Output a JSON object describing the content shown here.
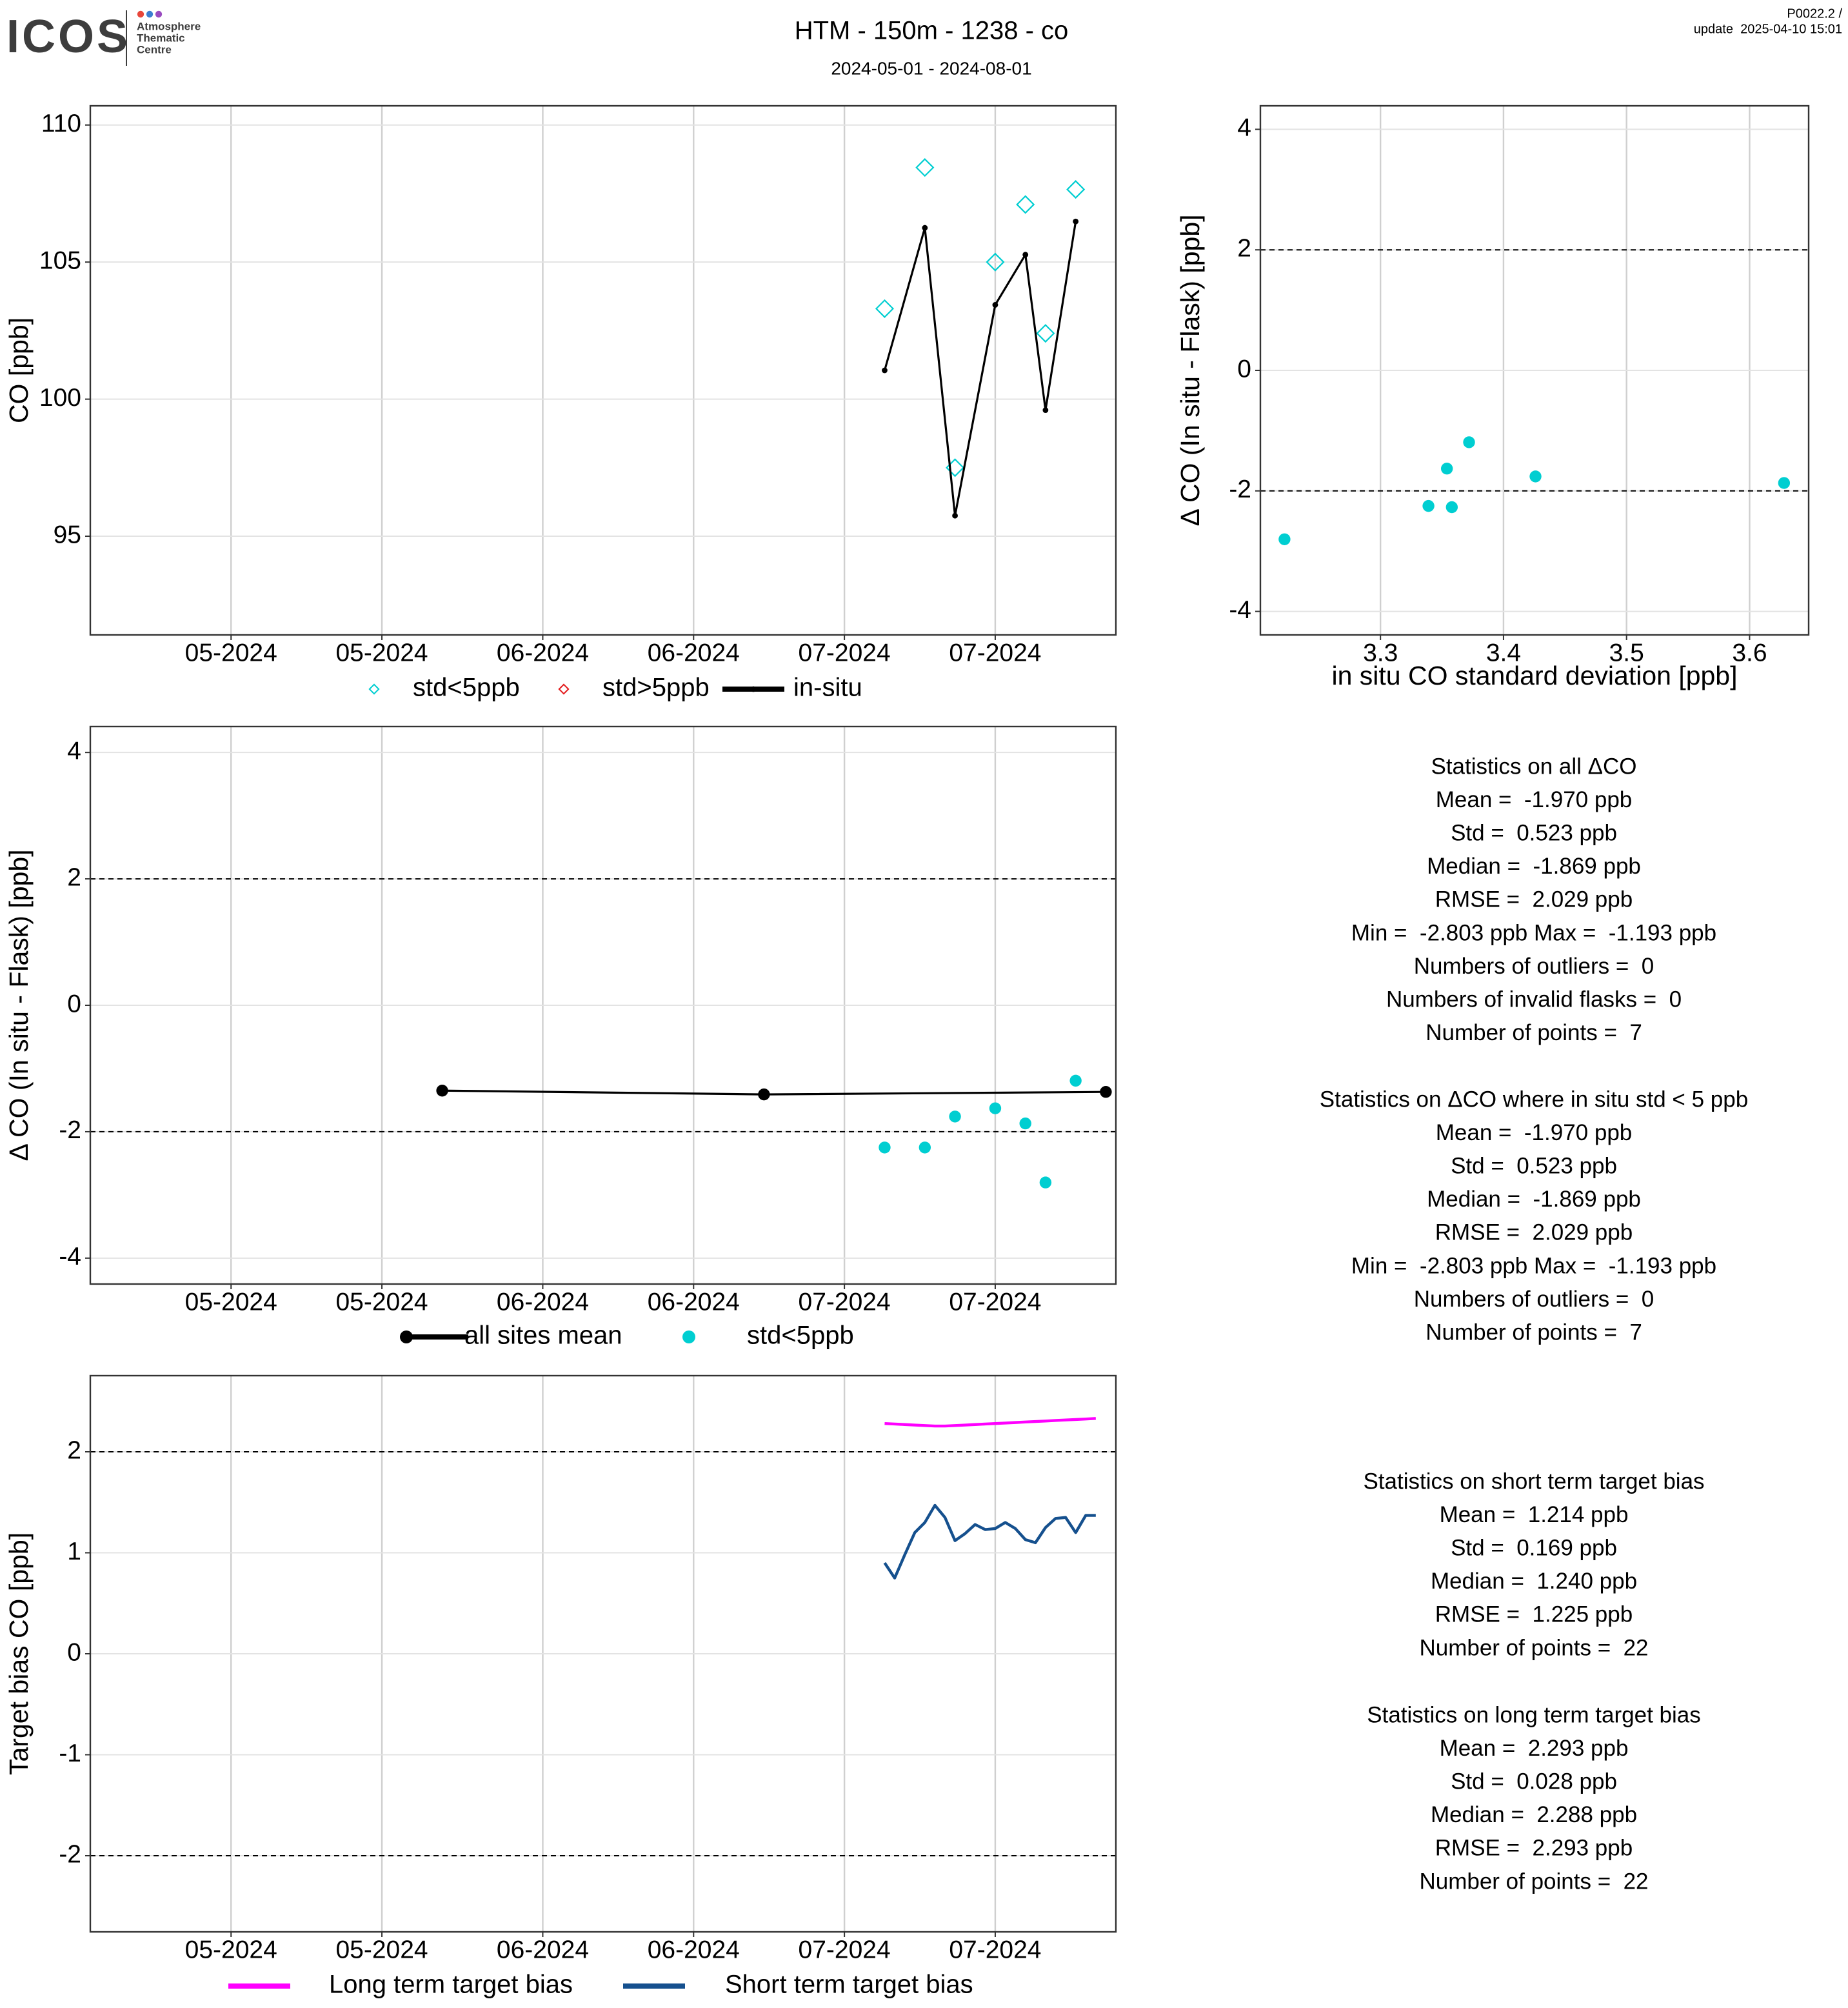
{
  "header": {
    "logo": "ICOS",
    "logo_text": [
      "Atmosphere",
      "Thematic",
      "Centre"
    ],
    "title": "HTM - 150m - 1238 - co",
    "subtitle": "2024-05-01 - 2024-08-01",
    "version": "P0022.2 /",
    "update": "update  2025-04-10 15:01"
  },
  "chart_data": [
    {
      "type": "line",
      "ylabel": "CO [ppb]",
      "grid": true,
      "legend": "bottom",
      "xlim": [
        "2024-04-17",
        "2024-07-28"
      ],
      "xticks": [
        {
          "value": "2024-05-01",
          "label": "05-2024"
        },
        {
          "value": "2024-05-16",
          "label": "05-2024"
        },
        {
          "value": "2024-06-01",
          "label": "06-2024"
        },
        {
          "value": "2024-06-16",
          "label": "06-2024"
        },
        {
          "value": "2024-07-01",
          "label": "07-2024"
        },
        {
          "value": "2024-07-16",
          "label": "07-2024"
        }
      ],
      "ylim": [
        91.4,
        110.7
      ],
      "yticks": [
        95,
        100,
        105,
        110
      ],
      "series": [
        {
          "name": "std<5ppb",
          "marker": "diamond",
          "line": false,
          "color": "#00ced1",
          "x": [
            "2024-07-05",
            "2024-07-09",
            "2024-07-12",
            "2024-07-16",
            "2024-07-19",
            "2024-07-21",
            "2024-07-24"
          ],
          "values": [
            103.3,
            108.45,
            97.5,
            105.0,
            107.1,
            102.4,
            107.65
          ]
        },
        {
          "name": "std>5ppb",
          "marker": "diamond",
          "line": false,
          "color": "#e31a1c",
          "x": [],
          "values": []
        },
        {
          "name": "in-situ",
          "marker": "dot",
          "line": true,
          "color": "#000000",
          "x": [
            "2024-07-05",
            "2024-07-09",
            "2024-07-12",
            "2024-07-16",
            "2024-07-19",
            "2024-07-21",
            "2024-07-24"
          ],
          "values": [
            101.05,
            106.25,
            95.75,
            103.44,
            105.27,
            99.6,
            106.48
          ]
        }
      ]
    },
    {
      "type": "scatter",
      "ylabel": "Δ CO (In situ - Flask) [ppb]",
      "xlabel": "in situ CO standard deviation [ppb]",
      "grid": true,
      "xlim": [
        3.2024,
        3.648
      ],
      "xticks": [
        3.3,
        3.4,
        3.5,
        3.6
      ],
      "ylim": [
        -4.39,
        4.39
      ],
      "yticks": [
        -4,
        -2,
        0,
        2,
        4
      ],
      "hlines": [
        2,
        -2
      ],
      "series": [
        {
          "marker": "circle",
          "line": false,
          "color": "#00ced1",
          "x": [
            3.222,
            3.339,
            3.354,
            3.358,
            3.372,
            3.426,
            3.628
          ],
          "values": [
            -2.803,
            -2.25,
            -1.63,
            -2.27,
            -1.193,
            -1.76,
            -1.869
          ]
        }
      ]
    },
    {
      "type": "line",
      "ylabel": "Δ CO (In situ - Flask) [ppb]",
      "grid": true,
      "legend": "bottom",
      "xlim": [
        "2024-04-17",
        "2024-07-28"
      ],
      "xticks": [
        {
          "value": "2024-05-01",
          "label": "05-2024"
        },
        {
          "value": "2024-05-16",
          "label": "05-2024"
        },
        {
          "value": "2024-06-01",
          "label": "06-2024"
        },
        {
          "value": "2024-06-16",
          "label": "06-2024"
        },
        {
          "value": "2024-07-01",
          "label": "07-2024"
        },
        {
          "value": "2024-07-16",
          "label": "07-2024"
        }
      ],
      "ylim": [
        -4.41,
        4.41
      ],
      "yticks": [
        -4,
        -2,
        0,
        2,
        4
      ],
      "hlines": [
        2,
        -2
      ],
      "series": [
        {
          "name": "all sites mean",
          "marker": "circle",
          "line": true,
          "color": "#000000",
          "x": [
            "2024-05-22",
            "2024-06-23",
            "2024-07-27"
          ],
          "values": [
            -1.35,
            -1.41,
            -1.37
          ]
        },
        {
          "name": "std<5ppb",
          "marker": "circle",
          "line": false,
          "color": "#00ced1",
          "x": [
            "2024-07-05",
            "2024-07-09",
            "2024-07-12",
            "2024-07-16",
            "2024-07-19",
            "2024-07-21",
            "2024-07-24"
          ],
          "values": [
            -2.25,
            -2.25,
            -1.76,
            -1.63,
            -1.869,
            -2.803,
            -1.193
          ]
        }
      ]
    },
    {
      "type": "line",
      "ylabel": "Target bias CO [ppb]",
      "grid": true,
      "legend": "bottom",
      "xlim": [
        "2024-04-17",
        "2024-07-28"
      ],
      "xticks": [
        {
          "value": "2024-05-01",
          "label": "05-2024"
        },
        {
          "value": "2024-05-16",
          "label": "05-2024"
        },
        {
          "value": "2024-06-01",
          "label": "06-2024"
        },
        {
          "value": "2024-06-16",
          "label": "06-2024"
        },
        {
          "value": "2024-07-01",
          "label": "07-2024"
        },
        {
          "value": "2024-07-16",
          "label": "07-2024"
        }
      ],
      "ylim": [
        -2.754,
        2.754
      ],
      "yticks": [
        -2,
        -1,
        0,
        1,
        2
      ],
      "hlines": [
        2,
        -2
      ],
      "series": [
        {
          "name": "Long term target bias",
          "line": true,
          "color": "#ff00ff",
          "x": [
            "2024-07-05",
            "2024-07-06",
            "2024-07-07",
            "2024-07-08",
            "2024-07-09",
            "2024-07-10",
            "2024-07-11",
            "2024-07-12",
            "2024-07-13",
            "2024-07-14",
            "2024-07-15",
            "2024-07-16",
            "2024-07-17",
            "2024-07-18",
            "2024-07-19",
            "2024-07-20",
            "2024-07-21",
            "2024-07-22",
            "2024-07-23",
            "2024-07-24",
            "2024-07-25",
            "2024-07-26"
          ],
          "values": [
            2.28,
            2.275,
            2.27,
            2.265,
            2.26,
            2.255,
            2.255,
            2.26,
            2.265,
            2.27,
            2.275,
            2.28,
            2.285,
            2.29,
            2.295,
            2.3,
            2.305,
            2.31,
            2.315,
            2.32,
            2.325,
            2.33
          ]
        },
        {
          "name": "Short term target bias",
          "line": true,
          "color": "#15508e",
          "x": [
            "2024-07-05",
            "2024-07-06",
            "2024-07-07",
            "2024-07-08",
            "2024-07-09",
            "2024-07-10",
            "2024-07-11",
            "2024-07-12",
            "2024-07-13",
            "2024-07-14",
            "2024-07-15",
            "2024-07-16",
            "2024-07-17",
            "2024-07-18",
            "2024-07-19",
            "2024-07-20",
            "2024-07-21",
            "2024-07-22",
            "2024-07-23",
            "2024-07-24",
            "2024-07-25",
            "2024-07-26"
          ],
          "values": [
            0.9,
            0.75,
            0.98,
            1.2,
            1.3,
            1.47,
            1.35,
            1.12,
            1.19,
            1.28,
            1.23,
            1.24,
            1.3,
            1.24,
            1.13,
            1.1,
            1.25,
            1.34,
            1.35,
            1.2,
            1.37,
            1.37
          ]
        }
      ]
    }
  ],
  "stats": [
    {
      "title": "Statistics on all ΔCO",
      "lines": [
        "Mean =  -1.970 ppb",
        "Std =  0.523 ppb",
        "Median =  -1.869 ppb",
        "RMSE =  2.029 ppb",
        "Min =  -2.803 ppb Max =  -1.193 ppb",
        "Numbers of outliers =  0",
        "Numbers of invalid flasks =  0",
        "Number of points =  7"
      ]
    },
    {
      "title": "Statistics on ΔCO where in situ std < 5 ppb",
      "lines": [
        "Mean =  -1.970 ppb",
        "Std =  0.523 ppb",
        "Median =  -1.869 ppb",
        "RMSE =  2.029 ppb",
        "Min =  -2.803 ppb Max =  -1.193 ppb",
        "Numbers of outliers =  0",
        "Number of points =  7"
      ]
    },
    {
      "title": "Statistics on short term target bias",
      "lines": [
        "Mean =  1.214 ppb",
        "Std =  0.169 ppb",
        "Median =  1.240 ppb",
        "RMSE =  1.225 ppb",
        "Number of points =  22"
      ]
    },
    {
      "title": "Statistics on long term target bias",
      "lines": [
        "Mean =  2.293 ppb",
        "Std =  0.028 ppb",
        "Median =  2.288 ppb",
        "RMSE =  2.293 ppb",
        "Number of points =  22"
      ]
    }
  ]
}
